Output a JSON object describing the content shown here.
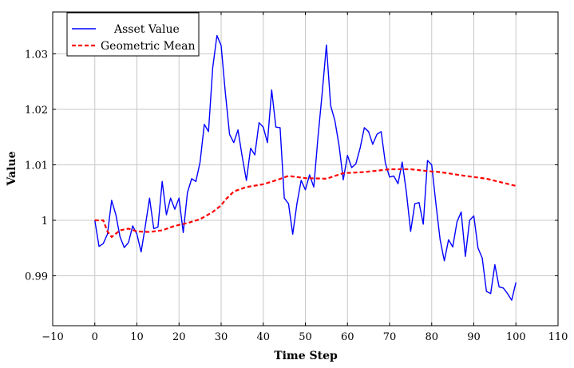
{
  "chart_data": {
    "type": "line",
    "title": "",
    "xlabel": "Time Step",
    "ylabel": "Value",
    "xlim": [
      -10,
      110
    ],
    "ylim": [
      0.981,
      1.0375
    ],
    "xticks": [
      "−10",
      "0",
      "10",
      "20",
      "30",
      "40",
      "50",
      "60",
      "70",
      "80",
      "90",
      "100",
      "110"
    ],
    "xtick_values": [
      -10,
      0,
      10,
      20,
      30,
      40,
      50,
      60,
      70,
      80,
      90,
      100,
      110
    ],
    "yticks": [
      "0.99",
      "1",
      "1.01",
      "1.02",
      "1.03"
    ],
    "ytick_values": [
      0.99,
      1.0,
      1.01,
      1.02,
      1.03
    ],
    "grid": true,
    "legend_position": "top-left",
    "series": [
      {
        "name": "Asset Value",
        "color": "#0000ff",
        "style": "solid",
        "x_start": 0,
        "values": [
          1.0,
          0.9953,
          0.9958,
          0.9975,
          1.0036,
          1.001,
          0.997,
          0.9951,
          0.996,
          0.999,
          0.9975,
          0.9943,
          0.999,
          1.004,
          0.9985,
          0.9988,
          1.007,
          1.001,
          1.004,
          1.002,
          1.004,
          0.9978,
          1.005,
          1.0075,
          1.007,
          1.0105,
          1.0173,
          1.016,
          1.0275,
          1.0333,
          1.0315,
          1.023,
          1.0155,
          1.014,
          1.0163,
          1.0115,
          1.0072,
          1.013,
          1.0118,
          1.0176,
          1.0168,
          1.014,
          1.0235,
          1.0168,
          1.0167,
          1.004,
          1.003,
          0.9975,
          1.003,
          1.0072,
          1.0055,
          1.0082,
          1.006,
          1.015,
          1.023,
          1.0316,
          1.0207,
          1.018,
          1.0135,
          1.0073,
          1.0117,
          1.0095,
          1.0102,
          1.013,
          1.0167,
          1.016,
          1.0137,
          1.0155,
          1.016,
          1.0103,
          1.0078,
          1.008,
          1.0066,
          1.0105,
          1.005,
          0.998,
          1.003,
          1.0032,
          0.9993,
          1.0108,
          1.01,
          1.003,
          0.9965,
          0.9927,
          0.9965,
          0.9952,
          0.9997,
          1.0015,
          0.9935,
          1.0,
          1.0008,
          0.995,
          0.9932,
          0.9872,
          0.9868,
          0.992,
          0.988,
          0.9878,
          0.9868,
          0.9856,
          0.9888
        ]
      },
      {
        "name": "Geometric Mean",
        "color": "#ff0000",
        "style": "dashed",
        "x": [
          0,
          2,
          3,
          4,
          6,
          8,
          10,
          13,
          16,
          19,
          22,
          25,
          28,
          30,
          31,
          33,
          36,
          40,
          43,
          46,
          50,
          55,
          59,
          64,
          70,
          75,
          80,
          82,
          88,
          93,
          100
        ],
        "values": [
          1.0,
          1.0,
          0.998,
          0.997,
          0.9982,
          0.9985,
          0.998,
          0.9979,
          0.9982,
          0.999,
          0.9995,
          1.0002,
          1.0015,
          1.0027,
          1.0037,
          1.0052,
          1.006,
          1.0065,
          1.0072,
          1.008,
          1.0076,
          1.0075,
          1.0085,
          1.0087,
          1.0092,
          1.0092,
          1.0088,
          1.0087,
          1.008,
          1.0075,
          1.0062
        ]
      }
    ]
  }
}
